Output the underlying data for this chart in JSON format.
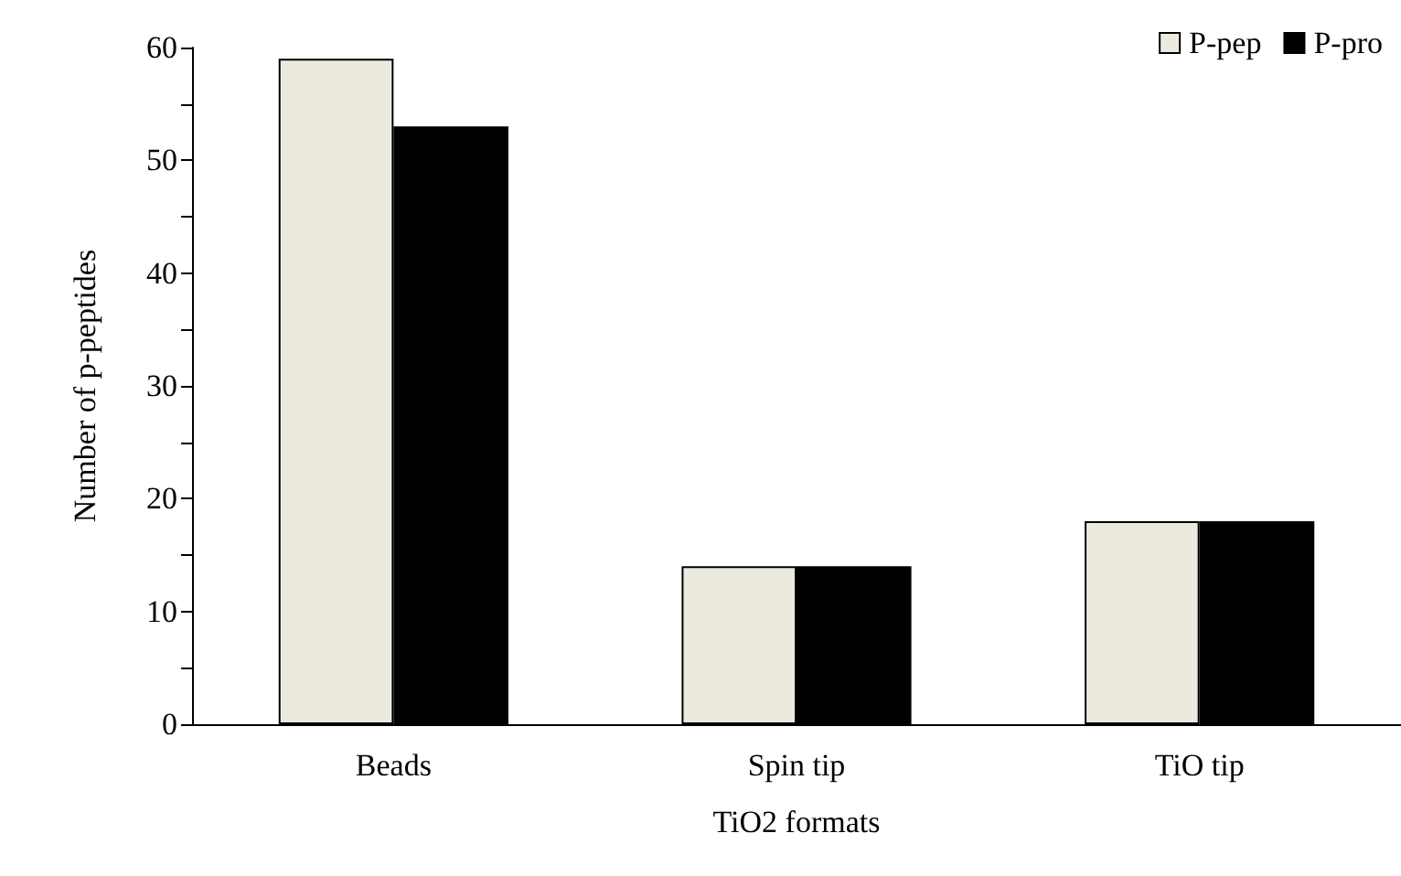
{
  "chart_data": {
    "type": "bar",
    "xlabel": "TiO2 formats",
    "ylabel": "Number of p-peptides",
    "categories": [
      "Beads",
      "Spin tip",
      "TiO tip"
    ],
    "series": [
      {
        "name": "P-pep",
        "color": "#ece9df",
        "values": [
          59,
          14,
          18
        ]
      },
      {
        "name": "P-pro",
        "color": "#000000",
        "values": [
          53,
          14,
          18
        ]
      }
    ],
    "ylim": [
      0,
      60
    ],
    "yticks": [
      0,
      {
        "value": 5,
        "label": null
      },
      10,
      {
        "value": 15,
        "label": null
      },
      20,
      {
        "value": 25,
        "label": null
      },
      30,
      {
        "value": 35,
        "label": null
      },
      40,
      {
        "value": 45,
        "label": null
      },
      50,
      {
        "value": 55,
        "label": null
      },
      60
    ],
    "grid": false,
    "legend": "top right"
  }
}
